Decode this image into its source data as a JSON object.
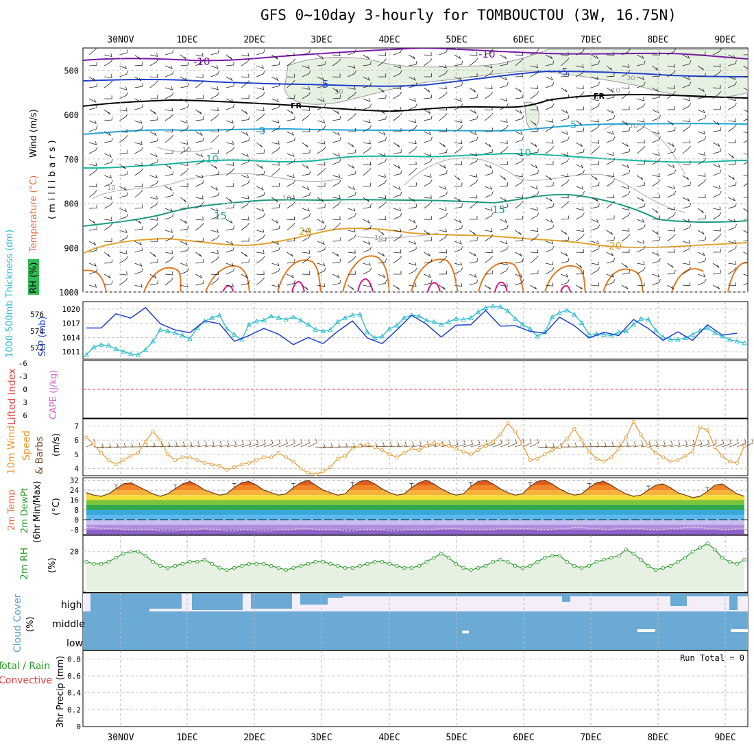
{
  "title": "GFS 0~10day 3-hourly for TOMBOUCTOU (3W, 16.75N)",
  "dates": [
    "30NOV",
    "1DEC",
    "2DEC",
    "3DEC",
    "4DEC",
    "5DEC",
    "6DEC",
    "7DEC",
    "8DEC",
    "9DEC"
  ],
  "colors": {
    "cyan": "#22bbcc",
    "blue": "#1f3fcc",
    "orange": "#e8962a",
    "green": "#2a9a2a",
    "purple": "#7a1aa8",
    "teal": "#13b5a0",
    "gold": "#e1a12a",
    "magenta": "#d6168a",
    "brown": "#6b4a2a",
    "cloud": "#6aaad4",
    "red": "#e04040",
    "pink": "#cc66cc"
  },
  "chart_data": [
    {
      "panel": "upper-air",
      "type": "contour",
      "ylabel_parts": [
        "RH (%)",
        "Temperature (°C)",
        "Wind (m/s)"
      ],
      "ylabel_units": "(millibars)",
      "yticks": [
        500,
        600,
        700,
        800,
        900,
        1000
      ],
      "ylim": [
        1000,
        450
      ],
      "contour_labels": [
        "-10",
        "-5",
        "FR",
        "5",
        "10",
        "15",
        "20",
        "10",
        "30"
      ]
    },
    {
      "panel": "thickness-slp",
      "type": "line",
      "ylabel_left": "1000-500mb Thickness (dm)",
      "ylabel_right": "SLP (mb)",
      "left_ticks": [
        "576",
        "574",
        "572"
      ],
      "left_range": [
        571,
        577.2
      ],
      "right_ticks": [
        "1020",
        "1017",
        "1014",
        "1011"
      ],
      "right_range": [
        1010,
        1021
      ],
      "series": [
        {
          "name": "thickness",
          "values": [
            571.2,
            572.1,
            572.4,
            572.3,
            571.9,
            571.6,
            571.3,
            571.2,
            571.8,
            572.8,
            574.2,
            574.0,
            573.8,
            573.5,
            573.1,
            574.4,
            575.2,
            575.6,
            575.9,
            574.3,
            573.6,
            573.0,
            574.8,
            575.2,
            575.3,
            575.8,
            575.6,
            575.4,
            575.7,
            575.3,
            574.8,
            574.2,
            574.0,
            574.2,
            575.1,
            575.6,
            575.9,
            576.0,
            573.9,
            573.2,
            573.4,
            574.3,
            574.7,
            575.6,
            575.9,
            575.8,
            575.3,
            575.1,
            574.8,
            575.1,
            575.5,
            575.4,
            575.6,
            576.3,
            576.8,
            577.0,
            576.9,
            576.4,
            575.5,
            574.8,
            574.3,
            573.4,
            573.9,
            575.7,
            576.2,
            576.5,
            576.0,
            575.0,
            573.6,
            573.7,
            573.6,
            573.5,
            573.9,
            574.0,
            574.8,
            575.5,
            575.4,
            574.1,
            573.3,
            573.0,
            573.0,
            573.2,
            573.6,
            574.1,
            574.4,
            573.8,
            573.4,
            573.0,
            572.8,
            572.6
          ]
        },
        {
          "name": "slp",
          "values": [
            1016.0,
            1019.0,
            1016.0,
            1017.0,
            1019.0,
            1018.7,
            1018.1,
            1019.4,
            1020.3,
            1018.2,
            1016.9,
            1016.2,
            1015.6,
            1015.4,
            1015.0,
            1016.6,
            1017.5,
            1016.7,
            1016.9,
            1014.1,
            1013.2,
            1011.7,
            1014.4,
            1015.6,
            1015.9,
            1016.4,
            1014.7,
            1011.7,
            1012.5,
            1014.6,
            1014.0,
            1015.6,
            1012.7,
            1012.2,
            1015.3,
            1016.6,
            1017.5,
            1018.7,
            1013.9,
            1012.1,
            1012.7,
            1013.6,
            1015.6,
            1017.2,
            1018.7,
            1019.3,
            1016.8,
            1014.0,
            1014.1,
            1015.8,
            1016.6,
            1015.0,
            1016.7,
            1018.2,
            1019.7,
            1017.4,
            1016.4,
            1015.4,
            1016.5,
            1017.6,
            1015.3,
            1011.8,
            1014.9,
            1017.2,
            1018.3,
            1017.5,
            1016.5,
            1014.6,
            1013.9,
            1014.7,
            1015.1,
            1013.2,
            1014.4,
            1016.3,
            1017.8,
            1018.4,
            1015.9,
            1013.2,
            1013.4,
            1014.3,
            1015.2,
            1014.0,
            1013.4,
            1015.1,
            1016.7,
            1015.2,
            1014.5,
            1014.0,
            1014.9,
            1015.3
          ]
        }
      ]
    },
    {
      "panel": "instability",
      "type": "line",
      "ylabel_left": "Lifted Index",
      "ylabel_right": "CAPE (J/kg)",
      "yticks": [
        "-6",
        "-3",
        "0",
        "3",
        "6"
      ],
      "ylim": [
        6,
        -6
      ]
    },
    {
      "panel": "wind10m",
      "type": "line",
      "ylabel_parts": [
        "10m Wind",
        "Speed",
        "& Barbs"
      ],
      "ylabel_units": "(m/s)",
      "yticks": [
        "7",
        "6",
        "5",
        "4"
      ],
      "ylim": [
        3.5,
        7.5
      ],
      "values": [
        6.2,
        5.7,
        5.1,
        4.6,
        4.3,
        4.6,
        4.9,
        5.1,
        5.9,
        6.6,
        6.0,
        5.0,
        4.6,
        4.8,
        4.8,
        4.6,
        4.4,
        4.3,
        4.2,
        3.9,
        4.1,
        4.3,
        4.4,
        4.6,
        4.8,
        4.8,
        5.1,
        4.8,
        4.5,
        4.0,
        3.7,
        3.6,
        3.8,
        4.1,
        4.7,
        4.9,
        5.4,
        5.6,
        5.7,
        5.5,
        5.3,
        5.0,
        4.8,
        5.1,
        5.4,
        5.3,
        5.6,
        5.8,
        5.7,
        5.6,
        5.4,
        5.2,
        5.0,
        5.3,
        5.6,
        5.9,
        6.4,
        7.2,
        6.6,
        5.7,
        4.6,
        4.7,
        5.0,
        5.3,
        5.5,
        6.1,
        6.8,
        6.0,
        5.2,
        4.7,
        4.5,
        4.8,
        5.4,
        6.2,
        7.3,
        6.4,
        5.6,
        5.1,
        4.8,
        4.5,
        4.6,
        4.9,
        5.2,
        6.9,
        6.7,
        5.5,
        4.9,
        4.5,
        4.4,
        5.6
      ]
    },
    {
      "panel": "temperature2m",
      "type": "area",
      "ylabel_parts": [
        "2m Temp",
        "2m DewPt",
        "(6hr Min/Max)"
      ],
      "ylabel_units": "(°C)",
      "yticks": [
        "32",
        "24",
        "16",
        "8",
        "0",
        "-8"
      ],
      "ylim": [
        -12,
        34
      ],
      "temp": [
        22,
        20,
        19,
        21,
        25,
        29,
        30,
        27,
        24,
        21,
        19,
        21,
        25,
        29,
        31,
        28,
        24,
        22,
        20,
        21,
        26,
        30,
        31,
        28,
        24,
        22,
        20,
        21,
        26,
        30,
        32,
        28,
        24,
        22,
        20,
        21,
        27,
        31,
        32,
        29,
        25,
        22,
        20,
        21,
        26,
        30,
        32,
        29,
        25,
        22,
        20,
        21,
        27,
        31,
        32,
        29,
        25,
        22,
        20,
        21,
        27,
        31,
        32,
        29,
        25,
        22,
        20,
        21,
        26,
        30,
        31,
        28,
        24,
        21,
        19,
        20,
        24,
        28,
        29,
        26,
        22,
        20,
        18,
        19,
        23,
        28,
        29,
        25,
        21,
        19
      ],
      "dewpt": [
        -6,
        -6,
        -7,
        -7,
        -7,
        -8,
        -8,
        -8,
        -8,
        -8,
        -9,
        -9,
        -9,
        -8,
        -8,
        -8,
        -7,
        -8,
        -8,
        -9,
        -9,
        -8,
        -8,
        -9,
        -9,
        -9,
        -8,
        -8,
        -8,
        -7,
        -7,
        -8,
        -8,
        -8,
        -8,
        -9,
        -9,
        -8,
        -8,
        -8,
        -8,
        -9,
        -9,
        -8,
        -8,
        -8,
        -8,
        -8,
        -7,
        -7,
        -7,
        -8,
        -8,
        -8,
        -8,
        -8,
        -7,
        -7,
        -7,
        -7,
        -7,
        -8,
        -8,
        -8,
        -7,
        -7,
        -6,
        -6,
        -7,
        -7,
        -8,
        -8,
        -7,
        -7,
        -7,
        -7,
        -8,
        -8,
        -8,
        -7,
        -7,
        -6,
        -6,
        -6,
        -7,
        -7,
        -8,
        -8,
        -7,
        -7
      ]
    },
    {
      "panel": "rh2m",
      "type": "area",
      "ylabel": "2m RH",
      "ylabel_units": "(%)",
      "yticks": [
        "20"
      ],
      "ylim": [
        0,
        28
      ],
      "values": [
        15,
        14,
        14,
        15,
        17,
        19,
        20,
        20,
        18,
        15,
        13,
        12,
        13,
        14,
        15,
        15,
        16,
        14,
        12,
        11,
        12,
        13,
        14,
        14,
        14,
        13,
        12,
        11,
        12,
        13,
        14,
        15,
        15,
        14,
        13,
        12,
        12,
        13,
        14,
        15,
        15,
        14,
        13,
        12,
        12,
        13,
        15,
        17,
        19,
        17,
        14,
        12,
        11,
        12,
        13,
        15,
        16,
        15,
        13,
        12,
        13,
        15,
        17,
        18,
        18,
        15,
        13,
        12,
        13,
        15,
        16,
        17,
        18,
        21,
        19,
        16,
        13,
        11,
        12,
        13,
        15,
        17,
        20,
        22,
        24,
        21,
        17,
        15,
        14,
        16
      ]
    },
    {
      "panel": "cloud",
      "type": "area",
      "ylabel": "Cloud Cover",
      "ylabel_units": "(%)",
      "level_labels": [
        "high",
        "middle",
        "low"
      ]
    },
    {
      "panel": "precip",
      "type": "bar",
      "ylabel_parts": [
        "Total / Rain",
        "Convective"
      ],
      "ylabel_units": "3hr Precip (mm)",
      "yticks": [
        "0.8",
        "0.6",
        "0.4",
        "0.2",
        "0"
      ],
      "ylim": [
        0,
        0.9
      ],
      "run_total": "Run Total = 0",
      "values": []
    }
  ],
  "labels": {
    "rh": "RH (%)",
    "temperature": "Temperature (°C)",
    "wind": "Wind (m/s)",
    "millibars": "(millibars)",
    "thickness": "1000-500mb Thickness (dm)",
    "slp": "SLP (mb)",
    "lifted_index": "Lifted Index",
    "cape": "CAPE (J/kg)",
    "wind10m": "10m Wind",
    "speed": "Speed",
    "barbs": "& Barbs",
    "ms": "(m/s)",
    "temp2m": "2m Temp",
    "dewpt2m": "2m DewPt",
    "minmax": "(6hr Min/Max)",
    "degc": "(°C)",
    "rh2m": "2m RH",
    "pct": "(%)",
    "cloud_cover": "Cloud Cover",
    "cloud_pct": "(%)",
    "total_rain": "Total / Rain",
    "convective": "Convective",
    "precip": "3hr Precip (mm)",
    "high": "high",
    "middle": "middle",
    "low": "low"
  }
}
